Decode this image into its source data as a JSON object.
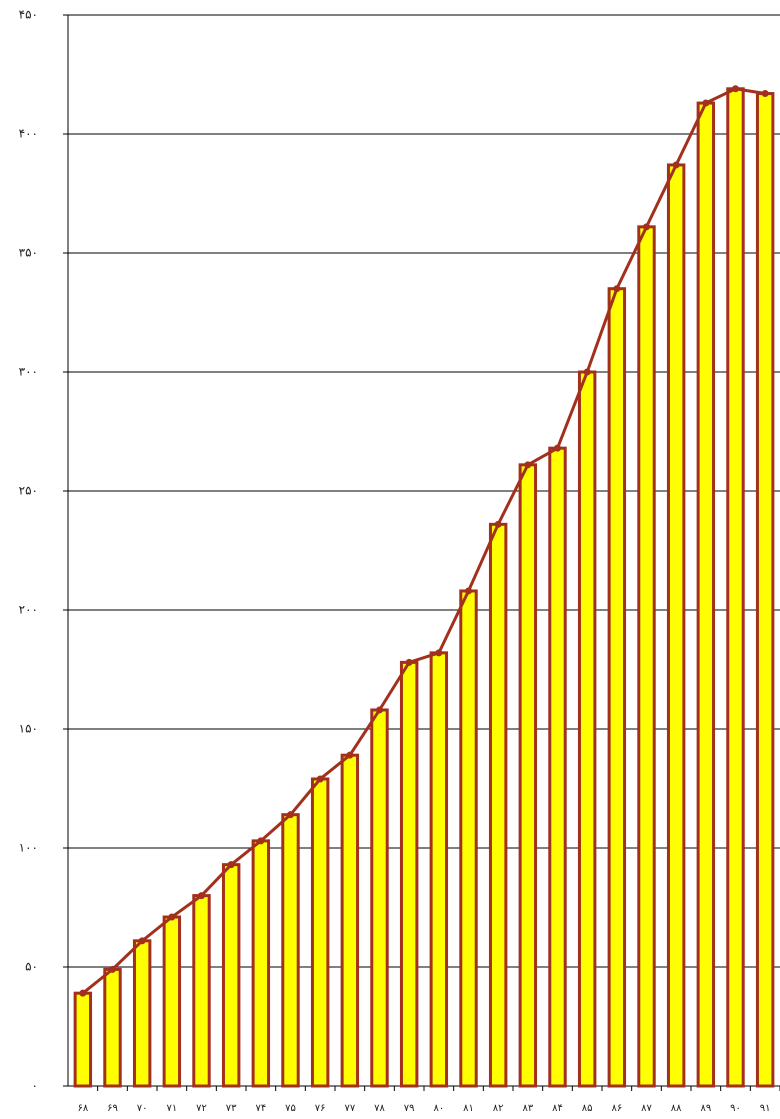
{
  "chart_data": {
    "type": "bar",
    "categories": [
      "۶۸",
      "۶۹",
      "۷۰",
      "۷۱",
      "۷۲",
      "۷۳",
      "۷۴",
      "۷۵",
      "۷۶",
      "۷۷",
      "۷۸",
      "۷۹",
      "۸۰",
      "۸۱",
      "۸۲",
      "۸۳",
      "۸۴",
      "۸۵",
      "۸۶",
      "۸۷",
      "۸۸",
      "۸۹",
      "۹۰",
      "۹۱"
    ],
    "values": [
      39,
      49,
      61,
      71,
      80,
      93,
      103,
      114,
      129,
      139,
      158,
      178,
      182,
      208,
      236,
      261,
      268,
      300,
      335,
      361,
      387,
      413,
      419,
      417
    ],
    "color": "#ffff00",
    "edge_color": "#a3301c",
    "line_overlay": true,
    "line_color": "#a3301c",
    "ylim": [
      0,
      450
    ],
    "yticks": [
      {
        "value": 0,
        "label": "۰"
      },
      {
        "value": 50,
        "label": "۵۰"
      },
      {
        "value": 100,
        "label": "۱۰۰"
      },
      {
        "value": 150,
        "label": "۱۵۰"
      },
      {
        "value": 200,
        "label": "۲۰۰"
      },
      {
        "value": 250,
        "label": "۲۵۰"
      },
      {
        "value": 300,
        "label": "۳۰۰"
      },
      {
        "value": 350,
        "label": "۳۵۰"
      },
      {
        "value": 400,
        "label": "۴۰۰"
      },
      {
        "value": 450,
        "label": "۴۵۰"
      }
    ],
    "grid": true
  }
}
